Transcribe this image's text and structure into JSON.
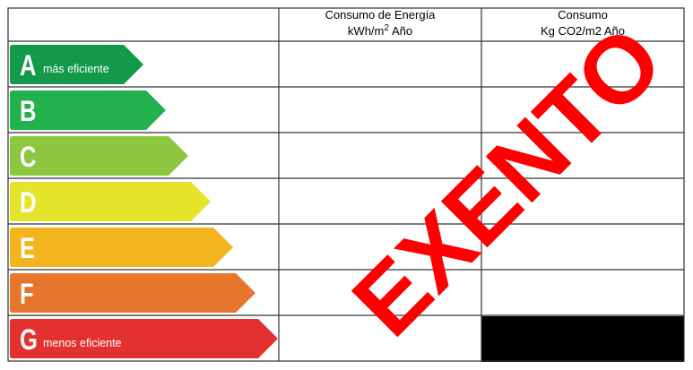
{
  "header": {
    "energy": {
      "line1": "Consumo de Energía",
      "unit": "kWh/m",
      "exponent": "2",
      "suffix": "Año"
    },
    "emissions": {
      "line1": "Consumo",
      "line2": "Kg CO2/m2 Año"
    }
  },
  "classes": [
    {
      "letter": "A",
      "note": "más eficiente",
      "color": "#12994a"
    },
    {
      "letter": "B",
      "note": null,
      "color": "#22b14c"
    },
    {
      "letter": "C",
      "note": null,
      "color": "#8dc63f"
    },
    {
      "letter": "D",
      "note": null,
      "color": "#e6e42a"
    },
    {
      "letter": "E",
      "note": null,
      "color": "#f2b51e"
    },
    {
      "letter": "F",
      "note": null,
      "color": "#e6762c"
    },
    {
      "letter": "G",
      "note": "menos eficiente",
      "color": "#e3312f"
    }
  ],
  "stamp": {
    "text": "EXENTO",
    "color": "#ff0000"
  }
}
